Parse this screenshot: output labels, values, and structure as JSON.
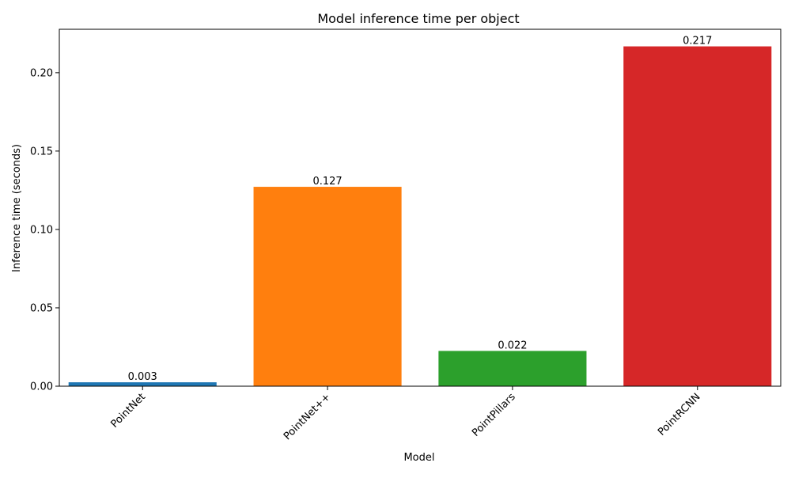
{
  "chart_data": {
    "type": "bar",
    "title": "Model inference time per object",
    "xlabel": "Model",
    "ylabel": "Inference time (seconds)",
    "categories": [
      "PointNet",
      "PointNet++",
      "PointPillars",
      "PointRCNN"
    ],
    "values": [
      0.0025,
      0.1272,
      0.0225,
      0.2168
    ],
    "data_labels": [
      "0.003",
      "0.127",
      "0.022",
      "0.217"
    ],
    "colors": [
      "#1f77b4",
      "#ff7f0e",
      "#2ca02c",
      "#d62728"
    ],
    "ylim": [
      0,
      0.2277
    ],
    "yticks": [
      0.0,
      0.05,
      0.1,
      0.15,
      0.2
    ],
    "ytick_labels": [
      "0.00",
      "0.05",
      "0.10",
      "0.15",
      "0.20"
    ],
    "xtick_rotation": 45,
    "grid": false,
    "legend": "none"
  }
}
